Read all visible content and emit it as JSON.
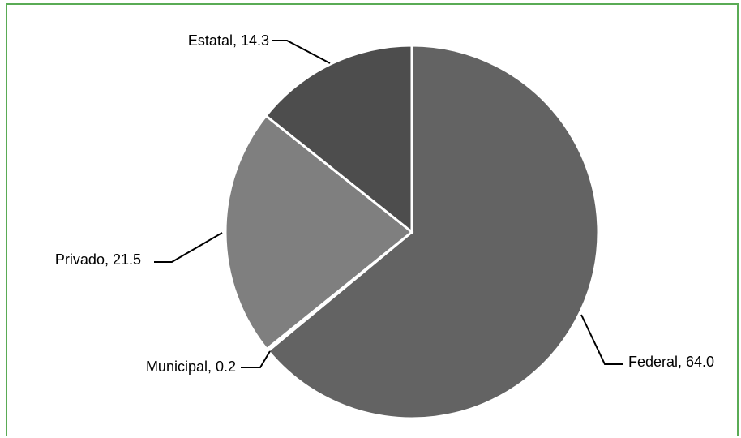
{
  "chart_data": {
    "type": "pie",
    "title": "",
    "slices": [
      {
        "label": "Federal",
        "value": 64.0,
        "display": "Federal, 64.0",
        "color": "#636363"
      },
      {
        "label": "Municipal",
        "value": 0.2,
        "display": "Municipal, 0.2",
        "color": "#7f7f7f"
      },
      {
        "label": "Privado",
        "value": 21.5,
        "display": "Privado, 21.5",
        "color": "#7f7f7f"
      },
      {
        "label": "Estatal",
        "value": 14.3,
        "display": "Estatal,  14.3",
        "color": "#4d4d4d"
      }
    ],
    "start": "12 o'clock",
    "direction": "clockwise",
    "legend": "none",
    "data_labels": "outside with leader lines"
  },
  "colors": {
    "frame_border": "#5aab55",
    "background": "#ffffff",
    "slice_separator": "#ffffff"
  }
}
